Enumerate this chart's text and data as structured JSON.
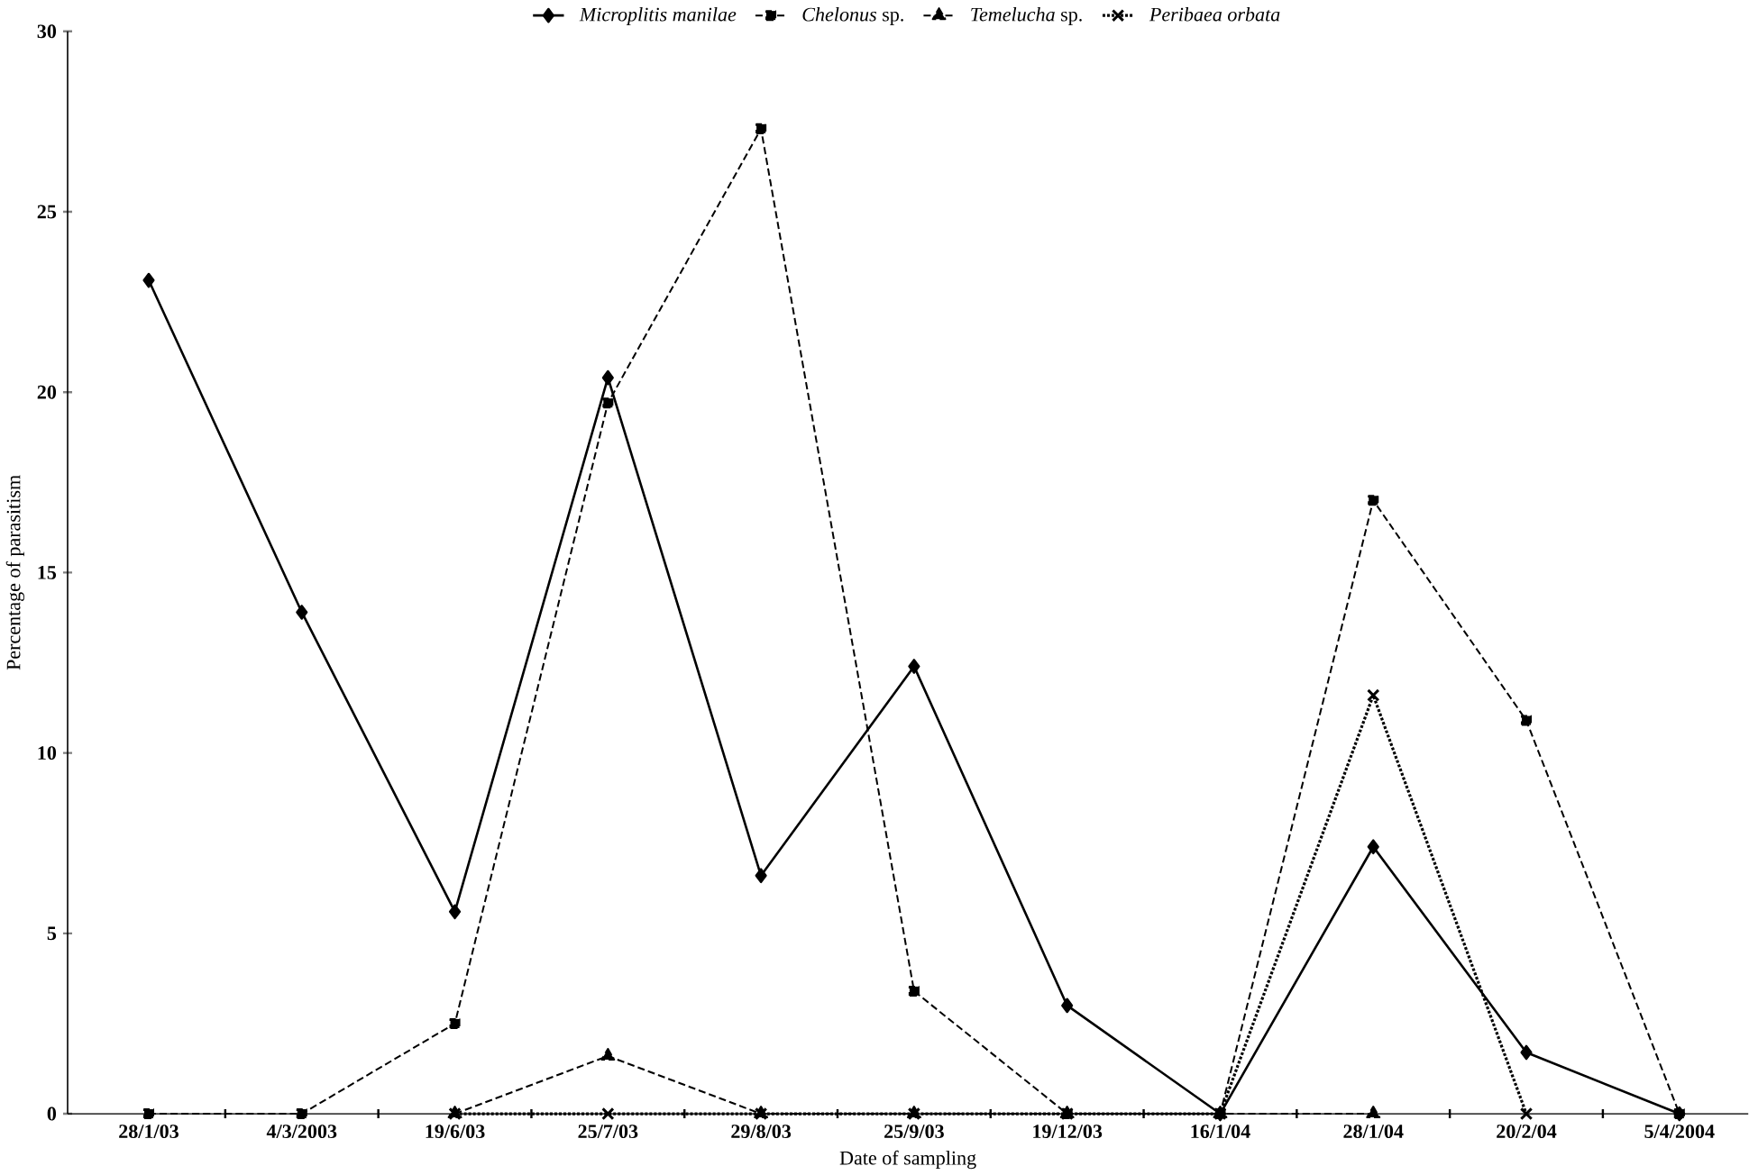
{
  "chart_data": {
    "type": "line",
    "xlabel": "Date of sampling",
    "ylabel": "Percentage of parasitism",
    "categories": [
      "28/1/03",
      "4/3/2003",
      "19/6/03",
      "25/7/03",
      "29/8/03",
      "25/9/03",
      "19/12/03",
      "16/1/04",
      "28/1/04",
      "20/2/04",
      "5/4/2004"
    ],
    "series": [
      {
        "name": "*Microplitis manilae*",
        "color": "#000000",
        "marker": "diamond",
        "line_style": "solid",
        "values": [
          23.1,
          13.9,
          5.6,
          20.4,
          6.6,
          12.4,
          3.0,
          0,
          7.4,
          1.7,
          0
        ]
      },
      {
        "name": "*Chelonus* sp.",
        "color": "#000000",
        "marker": "square",
        "line_style": "dashed",
        "values": [
          0,
          0,
          2.5,
          19.7,
          27.3,
          3.4,
          0,
          0,
          17.0,
          10.9,
          0
        ]
      },
      {
        "name": "*Temelucha* sp.",
        "color": "#000000",
        "marker": "triangle",
        "line_style": "dashed",
        "values": [
          null,
          null,
          0,
          1.6,
          0,
          0,
          0,
          0,
          0,
          null,
          null
        ]
      },
      {
        "name": "*Peribaea orbata*",
        "color": "#000000",
        "marker": "cross",
        "line_style": "dotted",
        "values": [
          null,
          null,
          0,
          0,
          0,
          0,
          0,
          0,
          11.6,
          0,
          null
        ]
      }
    ],
    "ylim": [
      0,
      30
    ],
    "yticks": [
      0,
      5,
      10,
      15,
      20,
      25,
      30
    ],
    "grid": false,
    "legend": "top"
  }
}
